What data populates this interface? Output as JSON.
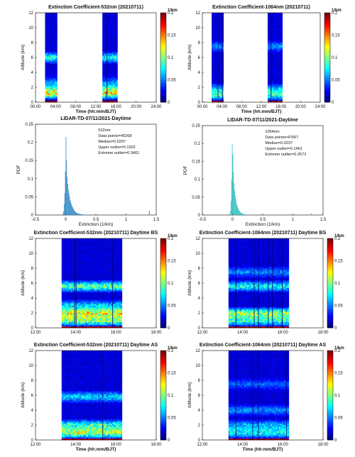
{
  "chart_data": [
    {
      "type": "heatmap",
      "title": "Extinction Coefficient-532nm (20210711)",
      "xlabel": "Time (hh:mm/BJT)",
      "ylabel": "Altitude (km)",
      "x_ticks": [
        "00:00",
        "04:00",
        "08:00",
        "12:00",
        "16:00",
        "20:00",
        "24:00"
      ],
      "y_ticks": [
        "0",
        "2",
        "4",
        "6",
        "8",
        "10",
        "12"
      ],
      "xlim_hours": [
        0,
        24
      ],
      "ylim": [
        0,
        12
      ],
      "colorbar": {
        "label": "1/km",
        "ticks": [
          "0",
          "0.05",
          "0.1",
          "0.15",
          "0.2"
        ],
        "range": [
          0,
          0.2
        ]
      },
      "data_segments_hours": [
        [
          1.9,
          4.3
        ],
        [
          13.3,
          16.3
        ]
      ],
      "high_values": [
        {
          "altitude_km": 1.2,
          "level": 0.12
        },
        {
          "altitude_km": 2.0,
          "level": 0.06
        },
        {
          "altitude_km": 2.8,
          "level": 0.03
        },
        {
          "altitude_km": 6.0,
          "level": 0.07
        }
      ]
    },
    {
      "type": "heatmap",
      "title": "Extinction Coefficient-1064nm (20210711)",
      "xlabel": "Time (hh:mm/BJT)",
      "ylabel": "Altitude (km)",
      "x_ticks": [
        "00:00",
        "04:00",
        "08:00",
        "12:00",
        "16:00",
        "20:00",
        "24:00"
      ],
      "y_ticks": [
        "0",
        "2",
        "4",
        "6",
        "8",
        "10",
        "12"
      ],
      "xlim_hours": [
        0,
        24
      ],
      "ylim": [
        0,
        12
      ],
      "colorbar": {
        "label": "1/km",
        "ticks": [
          "0",
          "0.05",
          "0.1",
          "0.15",
          "0.2"
        ],
        "range": [
          0,
          0.2
        ]
      },
      "data_segments_hours": [
        [
          1.9,
          4.3
        ],
        [
          13.3,
          16.3
        ]
      ],
      "high_values": [
        {
          "altitude_km": 1.0,
          "level": 0.08
        },
        {
          "altitude_km": 1.8,
          "level": 0.05
        },
        {
          "altitude_km": 7.5,
          "level": 0.04
        }
      ]
    },
    {
      "type": "bar",
      "title": "LIDAR-TD-07/11/2021-Daytime",
      "xlabel": "Extinction (1/km)",
      "ylabel": "PDF",
      "x_ticks": [
        "-0.5",
        "0",
        "0.5",
        "1",
        "1.5"
      ],
      "y_ticks": [
        "0",
        "0.05",
        "0.1",
        "0.15",
        "0.2",
        "0.25"
      ],
      "xlim": [
        -0.5,
        1.5
      ],
      "ylim": [
        0,
        0.25
      ],
      "color": "#3d8fc6",
      "stats": [
        "532nm",
        "Data points=45268",
        "Median=0.0297",
        "Upper outlier=0.1922",
        "Extreme outlier=0.3401"
      ],
      "bins_start": -0.05,
      "bin_width": 0.01,
      "pdf": [
        0.003,
        0.01,
        0.03,
        0.06,
        0.12,
        0.215,
        0.15,
        0.105,
        0.085,
        0.07,
        0.06,
        0.05,
        0.04,
        0.035,
        0.03,
        0.025,
        0.022,
        0.018,
        0.015,
        0.012,
        0.01,
        0.008,
        0.007,
        0.006,
        0.005,
        0.004,
        0.004,
        0.003,
        0.003,
        0.003,
        0.002,
        0.002,
        0.002,
        0.002,
        0.002,
        0.001,
        0.001,
        0.001,
        0.001,
        0.001
      ],
      "outliers": [
        {
          "x": 1.38,
          "y": 0.012
        }
      ]
    },
    {
      "type": "bar",
      "title": "LIDAR-TD-07/11/2021-Daytime",
      "xlabel": "Extinction (1/km)",
      "ylabel": "PDF",
      "x_ticks": [
        "-0.5",
        "0",
        "0.5",
        "1",
        "1.5"
      ],
      "y_ticks": [
        "0",
        "0.05",
        "0.1",
        "0.15",
        "0.2",
        "0.25"
      ],
      "xlim": [
        -0.5,
        1.5
      ],
      "ylim": [
        0,
        0.25
      ],
      "color": "#3fc1c0",
      "stats": [
        "1064nm",
        "Data points=47667",
        "Median=0.0237",
        "Upper outlier=0.1461",
        "Extreme outlier=0.2572"
      ],
      "bins_start": -0.05,
      "bin_width": 0.01,
      "pdf": [
        0.003,
        0.012,
        0.04,
        0.1,
        0.2,
        0.17,
        0.12,
        0.09,
        0.07,
        0.055,
        0.045,
        0.035,
        0.028,
        0.022,
        0.018,
        0.014,
        0.011,
        0.009,
        0.007,
        0.006,
        0.005,
        0.004,
        0.003,
        0.003,
        0.002,
        0.002,
        0.002,
        0.002,
        0.001,
        0.001
      ],
      "outliers": [
        {
          "x": 1.3,
          "y": 0.005
        }
      ]
    },
    {
      "type": "heatmap",
      "title": "Extinction Coefficient-532nm (20210711) Daytime BS",
      "xlabel": "",
      "ylabel": "Altitude (km)",
      "x_ticks": [
        "12:00",
        "14:00",
        "16:00",
        "18:00"
      ],
      "y_ticks": [
        "0",
        "2",
        "4",
        "6",
        "8",
        "10",
        "12"
      ],
      "xlim_hours": [
        12,
        18
      ],
      "ylim": [
        0,
        12
      ],
      "colorbar": {
        "label": "1/km",
        "ticks": [
          "0",
          "0.05",
          "0.1",
          "0.15",
          "0.2"
        ],
        "range": [
          0,
          0.2
        ]
      },
      "data_segments_hours": [
        [
          13.3,
          16.3
        ]
      ],
      "high_values": [
        {
          "altitude_km": 1.0,
          "level": 0.1
        },
        {
          "altitude_km": 2.0,
          "level": 0.12
        },
        {
          "altitude_km": 3.0,
          "level": 0.06
        },
        {
          "altitude_km": 5.6,
          "level": 0.09
        }
      ]
    },
    {
      "type": "heatmap",
      "title": "Extinction Coefficient-1064nm (20210711) Daytime BS",
      "xlabel": "",
      "ylabel": "Altitude (km)",
      "x_ticks": [
        "12:00",
        "14:00",
        "16:00",
        "18:00"
      ],
      "y_ticks": [
        "0",
        "2",
        "4",
        "6",
        "8",
        "10",
        "12"
      ],
      "xlim_hours": [
        12,
        18
      ],
      "ylim": [
        0,
        12
      ],
      "colorbar": {
        "label": "1/km",
        "ticks": [
          "0",
          "0.05",
          "0.1",
          "0.15",
          "0.2"
        ],
        "range": [
          0,
          0.2
        ]
      },
      "data_segments_hours": [
        [
          13.3,
          16.3
        ]
      ],
      "high_values": [
        {
          "altitude_km": 1.0,
          "level": 0.08
        },
        {
          "altitude_km": 2.0,
          "level": 0.1
        },
        {
          "altitude_km": 5.6,
          "level": 0.07
        },
        {
          "altitude_km": 7.5,
          "level": 0.04
        }
      ]
    },
    {
      "type": "heatmap",
      "title": "Extinction Coefficient-532nm (20210711) Daytime AS",
      "xlabel": "Time (hh:mm/BJT)",
      "ylabel": "Altitude (km)",
      "x_ticks": [
        "12:00",
        "14:00",
        "16:00",
        "18:00"
      ],
      "y_ticks": [
        "0",
        "2",
        "4",
        "6",
        "8",
        "10",
        "12"
      ],
      "xlim_hours": [
        12,
        18
      ],
      "ylim": [
        0,
        12
      ],
      "colorbar": {
        "label": "1/km",
        "ticks": [
          "0",
          "0.05",
          "0.1",
          "0.15",
          "0.2"
        ],
        "range": [
          0,
          0.2
        ]
      },
      "data_segments_hours": [
        [
          13.3,
          16.3
        ]
      ],
      "high_values": [
        {
          "altitude_km": 1.0,
          "level": 0.11
        },
        {
          "altitude_km": 2.0,
          "level": 0.08
        },
        {
          "altitude_km": 5.8,
          "level": 0.06
        }
      ]
    },
    {
      "type": "heatmap",
      "title": "Extinction Coefficient-1064nm (20210711) Daytime AS",
      "xlabel": "Time (hh:mm/BJT)",
      "ylabel": "Altitude (km)",
      "x_ticks": [
        "12:00",
        "14:00",
        "16:00",
        "18:00"
      ],
      "y_ticks": [
        "0",
        "2",
        "4",
        "6",
        "8",
        "10",
        "12"
      ],
      "xlim_hours": [
        12,
        18
      ],
      "ylim": [
        0,
        12
      ],
      "colorbar": {
        "label": "1/km",
        "ticks": [
          "0",
          "0.05",
          "0.1",
          "0.15",
          "0.2"
        ],
        "range": [
          0,
          0.2
        ]
      },
      "data_segments_hours": [
        [
          13.3,
          16.3
        ]
      ],
      "high_values": [
        {
          "altitude_km": 1.0,
          "level": 0.07
        },
        {
          "altitude_km": 2.0,
          "level": 0.05
        },
        {
          "altitude_km": 4.0,
          "level": 0.04
        },
        {
          "altitude_km": 7.5,
          "level": 0.03
        }
      ]
    }
  ]
}
